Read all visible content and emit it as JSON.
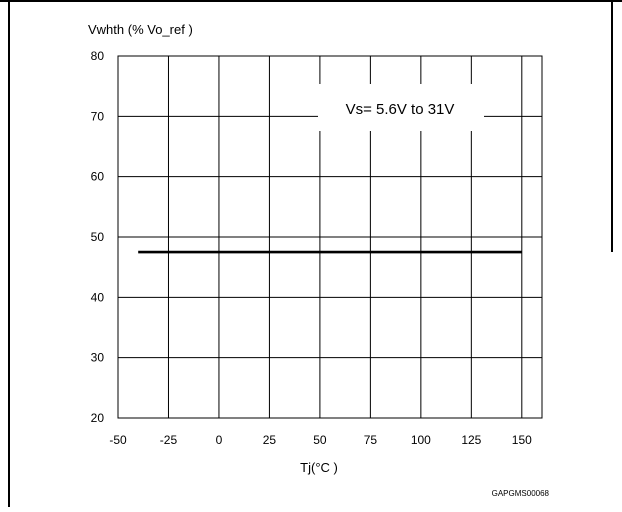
{
  "chart_data": {
    "type": "line",
    "title": "",
    "ylabel": "Vwhth (% Vo_ref )",
    "xlabel": "Tj(°C )",
    "xlim": [
      -50,
      160
    ],
    "ylim": [
      20,
      80
    ],
    "x_ticks": [
      -50,
      -25,
      0,
      25,
      50,
      75,
      100,
      125,
      150
    ],
    "y_ticks": [
      20,
      30,
      40,
      50,
      60,
      70,
      80
    ],
    "grid": true,
    "series": [
      {
        "x": [
          -40,
          150
        ],
        "values": [
          47.5,
          47.5
        ],
        "color": "#000000"
      }
    ],
    "annotation": "Vs= 5.6V to 31V",
    "figure_code": "GAPGMS00068"
  }
}
